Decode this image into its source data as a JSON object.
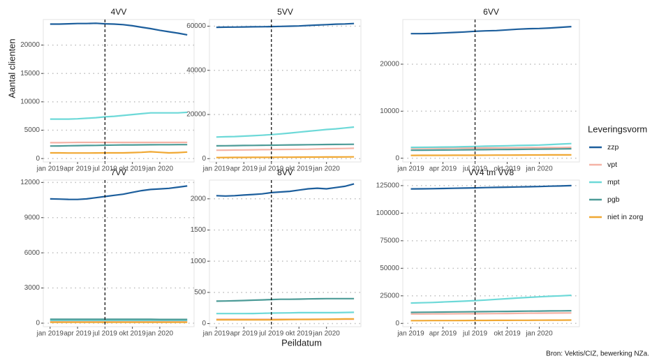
{
  "y_label": "Aantal clienten",
  "x_label": "Peildatum",
  "source": "Bron: Vektis/CIZ, bewerking NZa.",
  "legend_title": "Leveringsvorm",
  "chart_data": [
    {
      "type": "line",
      "title": "4VV",
      "x": [
        "2019-01",
        "2019-02",
        "2019-03",
        "2019-04",
        "2019-05",
        "2019-06",
        "2019-07",
        "2019-08",
        "2019-09",
        "2019-10",
        "2019-11",
        "2019-12",
        "2020-01",
        "2020-02",
        "2020-03",
        "2020-04"
      ],
      "xlim": [
        "2019-01",
        "2020-04"
      ],
      "xticks": [
        {
          "value": "2019-01",
          "label": "jan 2019"
        },
        {
          "value": "2019-04",
          "label": "apr 2019"
        },
        {
          "value": "2019-07",
          "label": "jul 2019"
        },
        {
          "value": "2019-10",
          "label": "okt 2019"
        },
        {
          "value": "2020-01",
          "label": "jan 2020"
        }
      ],
      "vline": "2019-07",
      "ylim": [
        -600,
        24500
      ],
      "yticks": [
        0,
        5000,
        10000,
        15000,
        20000
      ],
      "grid": true,
      "series": [
        {
          "name": "zzp",
          "color": "#1c5e9c",
          "values": [
            23700,
            23700,
            23750,
            23800,
            23800,
            23850,
            23750,
            23700,
            23600,
            23400,
            23150,
            22900,
            22600,
            22350,
            22100,
            21800
          ]
        },
        {
          "name": "vpt",
          "color": "#f5b3a6",
          "values": [
            2800,
            2800,
            2820,
            2850,
            2850,
            2850,
            2850,
            2850,
            2850,
            2850,
            2850,
            2850,
            2850,
            2850,
            2850,
            2850
          ]
        },
        {
          "name": "mpt",
          "color": "#6dd9d8",
          "values": [
            6950,
            6950,
            6950,
            7000,
            7100,
            7200,
            7350,
            7450,
            7600,
            7750,
            7900,
            8050,
            8050,
            8050,
            8050,
            8150
          ]
        },
        {
          "name": "pgb",
          "color": "#4c9b97",
          "values": [
            2200,
            2220,
            2250,
            2280,
            2300,
            2320,
            2350,
            2380,
            2400,
            2400,
            2420,
            2430,
            2440,
            2440,
            2450,
            2450
          ]
        },
        {
          "name": "niet in zorg",
          "color": "#f0a833",
          "values": [
            1000,
            1000,
            980,
            970,
            980,
            990,
            1000,
            1000,
            1000,
            1050,
            1100,
            1200,
            1100,
            1000,
            1050,
            1150
          ]
        }
      ]
    },
    {
      "type": "line",
      "title": "5VV",
      "x": [
        "2019-01",
        "2019-02",
        "2019-03",
        "2019-04",
        "2019-05",
        "2019-06",
        "2019-07",
        "2019-08",
        "2019-09",
        "2019-10",
        "2019-11",
        "2019-12",
        "2020-01",
        "2020-02",
        "2020-03",
        "2020-04"
      ],
      "xlim": [
        "2019-01",
        "2020-04"
      ],
      "xticks": [
        {
          "value": "2019-01",
          "label": "jan 2019"
        },
        {
          "value": "2019-04",
          "label": "apr 2019"
        },
        {
          "value": "2019-07",
          "label": "jul 2019"
        },
        {
          "value": "2019-10",
          "label": "okt 2019"
        },
        {
          "value": "2020-01",
          "label": "jan 2020"
        }
      ],
      "vline": "2019-07",
      "ylim": [
        -1500,
        63000
      ],
      "yticks": [
        0,
        20000,
        40000,
        60000
      ],
      "grid": true,
      "series": [
        {
          "name": "zzp",
          "color": "#1c5e9c",
          "values": [
            59500,
            59550,
            59600,
            59650,
            59700,
            59750,
            59800,
            59900,
            60000,
            60100,
            60300,
            60500,
            60700,
            60900,
            61000,
            61200
          ]
        },
        {
          "name": "vpt",
          "color": "#f5b3a6",
          "values": [
            3800,
            3850,
            3900,
            3950,
            4000,
            4050,
            4100,
            4150,
            4200,
            4250,
            4300,
            4400,
            4500,
            4550,
            4600,
            4700
          ]
        },
        {
          "name": "mpt",
          "color": "#6dd9d8",
          "values": [
            9800,
            9900,
            10000,
            10200,
            10400,
            10600,
            10900,
            11200,
            11600,
            12000,
            12400,
            12800,
            13200,
            13500,
            13900,
            14300
          ]
        },
        {
          "name": "pgb",
          "color": "#4c9b97",
          "values": [
            5800,
            5850,
            5900,
            5950,
            6000,
            6050,
            6100,
            6150,
            6200,
            6250,
            6300,
            6350,
            6400,
            6450,
            6480,
            6500
          ]
        },
        {
          "name": "niet in zorg",
          "color": "#f0a833",
          "values": [
            500,
            520,
            540,
            560,
            580,
            600,
            620,
            640,
            660,
            680,
            700,
            720,
            740,
            760,
            780,
            800
          ]
        }
      ]
    },
    {
      "type": "line",
      "title": "6VV",
      "x": [
        "2019-01",
        "2019-02",
        "2019-03",
        "2019-04",
        "2019-05",
        "2019-06",
        "2019-07",
        "2019-08",
        "2019-09",
        "2019-10",
        "2019-11",
        "2019-12",
        "2020-01",
        "2020-02",
        "2020-03",
        "2020-04"
      ],
      "xlim": [
        "2019-01",
        "2020-04"
      ],
      "xticks": [
        {
          "value": "2019-01",
          "label": "jan 2019"
        },
        {
          "value": "2019-04",
          "label": "apr 2019"
        },
        {
          "value": "2019-07",
          "label": "jul 2019"
        },
        {
          "value": "2019-10",
          "label": "okt 2019"
        },
        {
          "value": "2020-01",
          "label": "jan 2020"
        }
      ],
      "vline": "2019-07",
      "ylim": [
        -800,
        29500
      ],
      "yticks": [
        0,
        10000,
        20000
      ],
      "grid": true,
      "series": [
        {
          "name": "zzp",
          "color": "#1c5e9c",
          "values": [
            26500,
            26500,
            26550,
            26650,
            26750,
            26850,
            27000,
            27100,
            27150,
            27300,
            27450,
            27550,
            27600,
            27700,
            27850,
            28000
          ]
        },
        {
          "name": "vpt",
          "color": "#f5b3a6",
          "values": [
            2100,
            2110,
            2120,
            2130,
            2140,
            2150,
            2160,
            2180,
            2200,
            2210,
            2220,
            2240,
            2250,
            2270,
            2280,
            2300
          ]
        },
        {
          "name": "mpt",
          "color": "#6dd9d8",
          "values": [
            2300,
            2320,
            2350,
            2380,
            2400,
            2450,
            2500,
            2550,
            2600,
            2650,
            2700,
            2750,
            2800,
            2900,
            3000,
            3100
          ]
        },
        {
          "name": "pgb",
          "color": "#4c9b97",
          "values": [
            1700,
            1710,
            1720,
            1740,
            1760,
            1780,
            1800,
            1820,
            1840,
            1860,
            1880,
            1900,
            1920,
            1950,
            1980,
            2000
          ]
        },
        {
          "name": "niet in zorg",
          "color": "#f0a833",
          "values": [
            600,
            605,
            610,
            615,
            620,
            625,
            630,
            640,
            650,
            660,
            670,
            680,
            690,
            695,
            700,
            700
          ]
        }
      ]
    },
    {
      "type": "line",
      "title": "7VV",
      "x": [
        "2019-01",
        "2019-02",
        "2019-03",
        "2019-04",
        "2019-05",
        "2019-06",
        "2019-07",
        "2019-08",
        "2019-09",
        "2019-10",
        "2019-11",
        "2019-12",
        "2020-01",
        "2020-02",
        "2020-03",
        "2020-04"
      ],
      "xlim": [
        "2019-01",
        "2020-04"
      ],
      "xticks": [
        {
          "value": "2019-01",
          "label": "jan 2019"
        },
        {
          "value": "2019-04",
          "label": "apr 2019"
        },
        {
          "value": "2019-07",
          "label": "jul 2019"
        },
        {
          "value": "2019-10",
          "label": "okt 2019"
        },
        {
          "value": "2020-01",
          "label": "jan 2020"
        }
      ],
      "vline": "2019-07",
      "ylim": [
        -300,
        12200
      ],
      "yticks": [
        0,
        3000,
        6000,
        9000,
        12000
      ],
      "grid": true,
      "series": [
        {
          "name": "zzp",
          "color": "#1c5e9c",
          "values": [
            10600,
            10580,
            10560,
            10550,
            10600,
            10700,
            10800,
            10900,
            11000,
            11150,
            11300,
            11400,
            11450,
            11500,
            11600,
            11700
          ]
        },
        {
          "name": "vpt",
          "color": "#f5b3a6",
          "values": [
            150,
            150,
            150,
            150,
            150,
            150,
            150,
            150,
            150,
            150,
            150,
            150,
            150,
            150,
            150,
            150
          ]
        },
        {
          "name": "mpt",
          "color": "#6dd9d8",
          "values": [
            250,
            250,
            250,
            250,
            250,
            250,
            250,
            250,
            250,
            250,
            250,
            250,
            250,
            250,
            250,
            250
          ]
        },
        {
          "name": "pgb",
          "color": "#4c9b97",
          "values": [
            330,
            330,
            330,
            330,
            330,
            330,
            330,
            330,
            330,
            330,
            330,
            330,
            320,
            320,
            320,
            320
          ]
        },
        {
          "name": "niet in zorg",
          "color": "#f0a833",
          "values": [
            80,
            80,
            80,
            80,
            80,
            80,
            80,
            80,
            80,
            80,
            80,
            80,
            80,
            80,
            80,
            80
          ]
        }
      ]
    },
    {
      "type": "line",
      "title": "8VV",
      "x": [
        "2019-01",
        "2019-02",
        "2019-03",
        "2019-04",
        "2019-05",
        "2019-06",
        "2019-07",
        "2019-08",
        "2019-09",
        "2019-10",
        "2019-11",
        "2019-12",
        "2020-01",
        "2020-02",
        "2020-03",
        "2020-04"
      ],
      "xlim": [
        "2019-01",
        "2020-04"
      ],
      "xticks": [
        {
          "value": "2019-01",
          "label": "jan 2019"
        },
        {
          "value": "2019-04",
          "label": "apr 2019"
        },
        {
          "value": "2019-07",
          "label": "jul 2019"
        },
        {
          "value": "2019-10",
          "label": "okt 2019"
        },
        {
          "value": "2020-01",
          "label": "jan 2020"
        }
      ],
      "vline": "2019-07",
      "ylim": [
        -50,
        2300
      ],
      "yticks": [
        0,
        500,
        1000,
        1500,
        2000
      ],
      "grid": true,
      "series": [
        {
          "name": "zzp",
          "color": "#1c5e9c",
          "values": [
            2050,
            2045,
            2050,
            2060,
            2070,
            2080,
            2100,
            2110,
            2120,
            2140,
            2160,
            2170,
            2160,
            2180,
            2200,
            2240
          ]
        },
        {
          "name": "vpt",
          "color": "#f5b3a6",
          "values": [
            70,
            70,
            70,
            70,
            70,
            70,
            70,
            70,
            70,
            70,
            70,
            70,
            70,
            70,
            70,
            70
          ]
        },
        {
          "name": "mpt",
          "color": "#6dd9d8",
          "values": [
            160,
            160,
            160,
            160,
            162,
            165,
            168,
            170,
            172,
            175,
            175,
            175,
            175,
            175,
            178,
            180
          ]
        },
        {
          "name": "pgb",
          "color": "#4c9b97",
          "values": [
            360,
            362,
            365,
            370,
            375,
            380,
            385,
            390,
            390,
            392,
            395,
            398,
            400,
            400,
            400,
            400
          ]
        },
        {
          "name": "niet in zorg",
          "color": "#f0a833",
          "values": [
            60,
            60,
            60,
            60,
            60,
            60,
            60,
            62,
            64,
            65,
            66,
            68,
            70,
            72,
            74,
            75
          ]
        }
      ]
    },
    {
      "type": "line",
      "title": "VV4 tm VV8",
      "x": [
        "2019-01",
        "2019-02",
        "2019-03",
        "2019-04",
        "2019-05",
        "2019-06",
        "2019-07",
        "2019-08",
        "2019-09",
        "2019-10",
        "2019-11",
        "2019-12",
        "2020-01",
        "2020-02",
        "2020-03",
        "2020-04"
      ],
      "xlim": [
        "2019-01",
        "2020-04"
      ],
      "xticks": [
        {
          "value": "2019-01",
          "label": "jan 2019"
        },
        {
          "value": "2019-04",
          "label": "apr 2019"
        },
        {
          "value": "2019-07",
          "label": "jul 2019"
        },
        {
          "value": "2019-10",
          "label": "okt 2019"
        },
        {
          "value": "2020-01",
          "label": "jan 2020"
        }
      ],
      "vline": "2019-07",
      "ylim": [
        -3000,
        130000
      ],
      "yticks": [
        0,
        25000,
        50000,
        75000,
        100000,
        125000
      ],
      "grid": true,
      "series": [
        {
          "name": "zzp",
          "color": "#1c5e9c",
          "values": [
            122000,
            122100,
            122200,
            122400,
            122600,
            122800,
            123000,
            123200,
            123400,
            123600,
            123800,
            124000,
            124200,
            124500,
            124700,
            125000
          ]
        },
        {
          "name": "vpt",
          "color": "#f5b3a6",
          "values": [
            8500,
            8550,
            8600,
            8650,
            8700,
            8750,
            8800,
            8850,
            8900,
            9000,
            9100,
            9200,
            9300,
            9350,
            9400,
            9500
          ]
        },
        {
          "name": "mpt",
          "color": "#6dd9d8",
          "values": [
            18500,
            18700,
            19000,
            19400,
            19800,
            20200,
            20700,
            21200,
            21800,
            22400,
            23000,
            23600,
            24100,
            24600,
            25000,
            25500
          ]
        },
        {
          "name": "pgb",
          "color": "#4c9b97",
          "values": [
            10000,
            10100,
            10200,
            10300,
            10400,
            10500,
            10600,
            10700,
            10800,
            10900,
            11000,
            11100,
            11200,
            11300,
            11400,
            11500
          ]
        },
        {
          "name": "niet in zorg",
          "color": "#f0a833",
          "values": [
            2500,
            2520,
            2550,
            2580,
            2600,
            2650,
            2700,
            2720,
            2750,
            2780,
            2800,
            2850,
            2900,
            2950,
            2980,
            3000
          ]
        }
      ]
    }
  ]
}
